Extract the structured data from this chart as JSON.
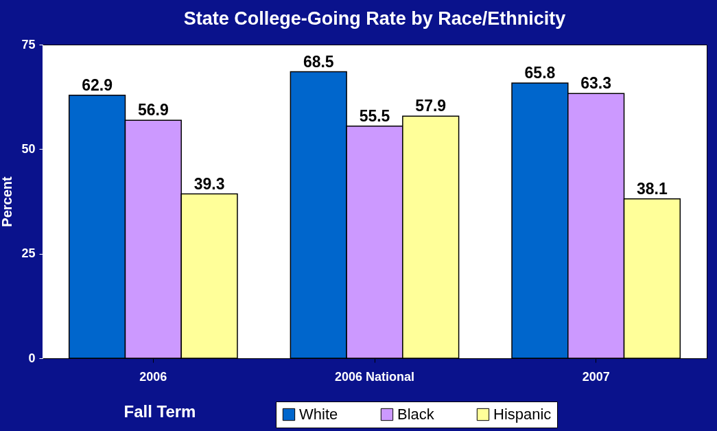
{
  "chart_data": {
    "type": "bar",
    "title": "State College-Going Rate by Race/Ethnicity",
    "xlabel": "Fall Term",
    "ylabel": "Percent",
    "categories": [
      "2006",
      "2006 National",
      "2007"
    ],
    "series": [
      {
        "name": "White",
        "color": "#0066cc",
        "values": [
          62.9,
          68.5,
          65.8
        ]
      },
      {
        "name": "Black",
        "color": "#cc99ff",
        "values": [
          56.9,
          55.5,
          63.3
        ]
      },
      {
        "name": "Hispanic",
        "color": "#ffff99",
        "values": [
          39.3,
          57.9,
          38.1
        ]
      }
    ],
    "ylim": [
      0,
      75
    ],
    "yticks": [
      0,
      25,
      50,
      75
    ],
    "data_labels": true,
    "legend": "bottom",
    "grid": false
  }
}
